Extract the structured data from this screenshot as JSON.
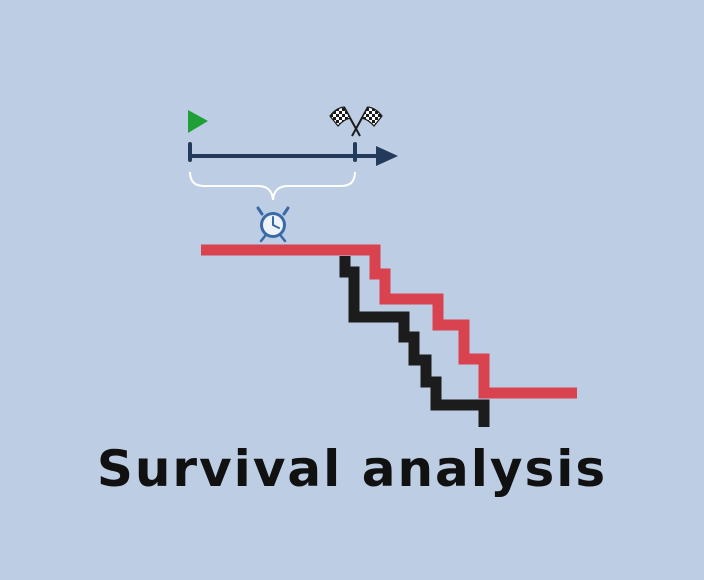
{
  "title": "Survival analysis",
  "icons": {
    "start": "start-flag-icon",
    "finish": "checkered-flags-icon",
    "timer": "alarm-clock-icon"
  },
  "colors": {
    "background": "#bccde4",
    "timeline": "#243a5a",
    "start_flag": "#1fa037",
    "red_curve": "#d8434f",
    "black_curve": "#1c1c1c",
    "clock": "#3a6aa6"
  }
}
